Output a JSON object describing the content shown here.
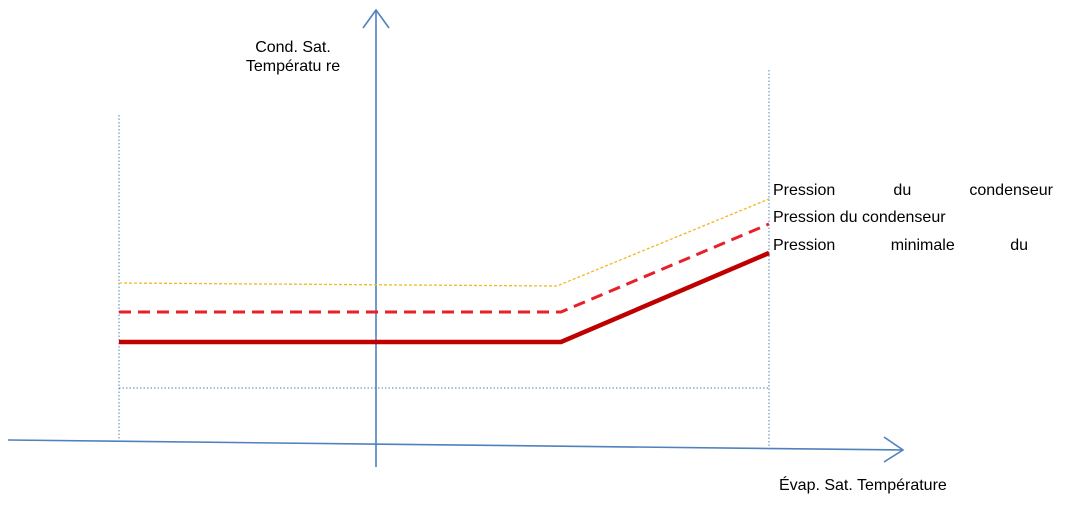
{
  "diagram": {
    "y_axis_label": "Cond. Sat. Températu re",
    "x_axis_label": "Évap. Sat. Température",
    "legend": [
      {
        "label": "Pression du condenseur",
        "color": "#f2b824",
        "style": "dotted-thin"
      },
      {
        "label": "Pression du condenseur",
        "color": "#e8202a",
        "style": "dashed"
      },
      {
        "label": "Pression minimale du",
        "color": "#c00000",
        "style": "solid-thick"
      }
    ],
    "colors": {
      "axis": "#4f81bd",
      "guide": "#4f81bd",
      "series_top": "#f2b824",
      "series_mid": "#e8202a",
      "series_bottom": "#c00000"
    }
  }
}
